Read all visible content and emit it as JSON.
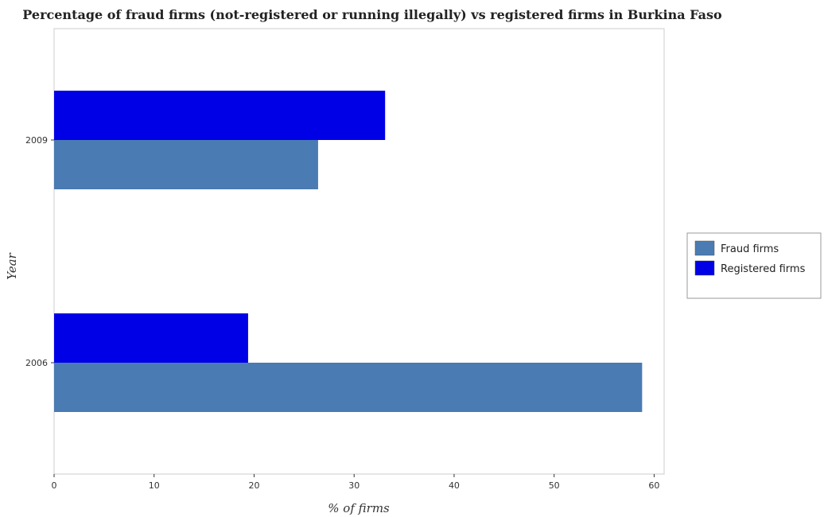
{
  "chart_data": {
    "type": "bar",
    "orientation": "horizontal",
    "title": "Percentage of fraud firms (not-registered or running illegally) vs registered firms in Burkina Faso",
    "xlabel": "% of firms",
    "ylabel": "Year",
    "categories": [
      "2006",
      "2009"
    ],
    "series": [
      {
        "name": "Fraud firms",
        "color": "#4a7bb3",
        "values": [
          58.8,
          26.4
        ]
      },
      {
        "name": "Registered firms",
        "color": "#0000e6",
        "values": [
          19.4,
          33.1
        ]
      }
    ],
    "xlim": [
      0,
      61
    ],
    "xticks": [
      0,
      10,
      20,
      30,
      40,
      50,
      60
    ],
    "grid": false,
    "legend": "right"
  }
}
